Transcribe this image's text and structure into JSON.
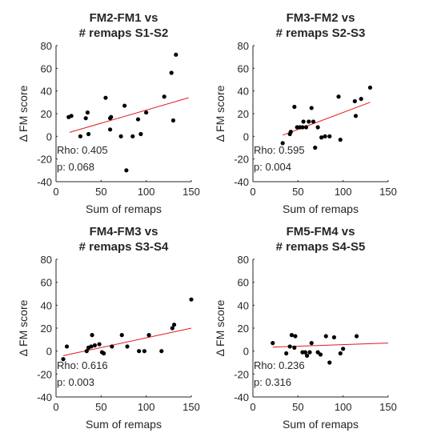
{
  "chart_data": [
    {
      "type": "scatter",
      "title": "FM2-FM1 vs",
      "subtitle": "# remaps S1-S2",
      "xlabel": "Sum of remaps",
      "ylabel": "Δ FM score",
      "xlim": [
        0,
        150
      ],
      "ylim": [
        -40,
        80
      ],
      "xticks": [
        "0",
        "50",
        "100",
        "150"
      ],
      "yticks": [
        "80",
        "60",
        "40",
        "20",
        "0",
        "-20",
        "-40"
      ],
      "rho_text": "Rho: 0.405",
      "p_text": "p: 0.068",
      "grid": false,
      "points": [
        [
          14,
          17
        ],
        [
          17,
          18
        ],
        [
          27,
          0
        ],
        [
          33,
          16
        ],
        [
          35,
          21
        ],
        [
          36,
          2
        ],
        [
          55,
          34
        ],
        [
          60,
          16
        ],
        [
          60,
          6
        ],
        [
          61,
          17
        ],
        [
          72,
          0
        ],
        [
          76,
          27
        ],
        [
          78,
          -30
        ],
        [
          85,
          0
        ],
        [
          91,
          15
        ],
        [
          94,
          2
        ],
        [
          100,
          21
        ],
        [
          120,
          35
        ],
        [
          128,
          56
        ],
        [
          130,
          14
        ],
        [
          133,
          72
        ]
      ],
      "fit": [
        [
          15,
          3.5
        ],
        [
          147,
          34
        ]
      ],
      "point_color": "#000000",
      "fit_color": "#e31a1c"
    },
    {
      "type": "scatter",
      "title": "FM3-FM2 vs",
      "subtitle": "# remaps S2-S3",
      "xlabel": "Sum of remaps",
      "ylabel": "Δ FM score",
      "xlim": [
        0,
        150
      ],
      "ylim": [
        -40,
        80
      ],
      "xticks": [
        "0",
        "50",
        "100",
        "150"
      ],
      "yticks": [
        "80",
        "60",
        "40",
        "20",
        "0",
        "-20",
        "-40"
      ],
      "rho_text": "Rho: 0.595",
      "p_text": "p: 0.004",
      "grid": false,
      "points": [
        [
          33,
          -6
        ],
        [
          41,
          2
        ],
        [
          42,
          4
        ],
        [
          46,
          26
        ],
        [
          49,
          8
        ],
        [
          52,
          8
        ],
        [
          55,
          8
        ],
        [
          56,
          13
        ],
        [
          59,
          8
        ],
        [
          62,
          13
        ],
        [
          65,
          25
        ],
        [
          67,
          13
        ],
        [
          69,
          -10
        ],
        [
          72,
          8
        ],
        [
          76,
          -1
        ],
        [
          80,
          0
        ],
        [
          85,
          0
        ],
        [
          95,
          35
        ],
        [
          97,
          -3
        ],
        [
          113,
          31
        ],
        [
          114,
          18
        ],
        [
          120,
          33
        ],
        [
          130,
          43
        ]
      ],
      "fit": [
        [
          33,
          1
        ],
        [
          130,
          30
        ]
      ],
      "point_color": "#000000",
      "fit_color": "#e31a1c"
    },
    {
      "type": "scatter",
      "title": "FM4-FM3 vs",
      "subtitle": "# remaps S3-S4",
      "xlabel": "Sum of remaps",
      "ylabel": "Δ FM score",
      "xlim": [
        0,
        150
      ],
      "ylim": [
        -40,
        80
      ],
      "xticks": [
        "0",
        "50",
        "100",
        "150"
      ],
      "yticks": [
        "80",
        "60",
        "40",
        "20",
        "0",
        "-20",
        "-40"
      ],
      "rho_text": "Rho: 0.616",
      "p_text": "p: 0.003",
      "grid": false,
      "points": [
        [
          8,
          -7
        ],
        [
          12,
          4
        ],
        [
          34,
          0
        ],
        [
          36,
          3
        ],
        [
          39,
          4
        ],
        [
          40,
          14
        ],
        [
          43,
          5
        ],
        [
          48,
          6
        ],
        [
          51,
          -1
        ],
        [
          53,
          -2
        ],
        [
          62,
          4
        ],
        [
          73,
          14
        ],
        [
          79,
          4
        ],
        [
          92,
          0
        ],
        [
          98,
          0
        ],
        [
          103,
          14
        ],
        [
          117,
          0
        ],
        [
          129,
          20
        ],
        [
          131,
          23
        ],
        [
          150,
          45
        ]
      ],
      "fit": [
        [
          8,
          -4
        ],
        [
          150,
          20
        ]
      ],
      "point_color": "#000000",
      "fit_color": "#e31a1c"
    },
    {
      "type": "scatter",
      "title": "FM5-FM4 vs",
      "subtitle": "# remaps S4-S5",
      "xlabel": "Sum of remaps",
      "ylabel": "Δ FM score",
      "xlim": [
        0,
        150
      ],
      "ylim": [
        -40,
        80
      ],
      "xticks": [
        "0",
        "50",
        "100",
        "150"
      ],
      "yticks": [
        "80",
        "60",
        "40",
        "20",
        "0",
        "-20",
        "-40"
      ],
      "rho_text": "Rho: 0.236",
      "p_text": "p: 0.316",
      "grid": false,
      "points": [
        [
          22,
          7
        ],
        [
          37,
          -2
        ],
        [
          41,
          4
        ],
        [
          43,
          14
        ],
        [
          46,
          3
        ],
        [
          47,
          13
        ],
        [
          55,
          -1
        ],
        [
          58,
          -1
        ],
        [
          60,
          -4
        ],
        [
          63,
          -1
        ],
        [
          65,
          7
        ],
        [
          72,
          -1
        ],
        [
          75,
          -3
        ],
        [
          81,
          13
        ],
        [
          85,
          -10
        ],
        [
          90,
          12
        ],
        [
          97,
          -2
        ],
        [
          100,
          2
        ],
        [
          115,
          13
        ]
      ],
      "fit": [
        [
          22,
          3.5
        ],
        [
          150,
          7
        ]
      ],
      "point_color": "#000000",
      "fit_color": "#e31a1c"
    }
  ]
}
